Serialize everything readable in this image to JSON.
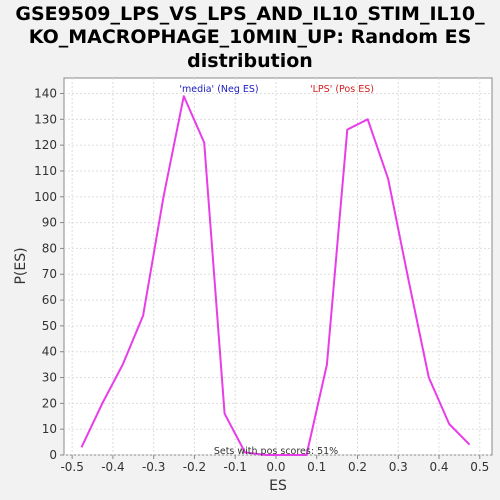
{
  "chart_data": {
    "type": "line",
    "title_lines": [
      "GSE9509_LPS_VS_LPS_AND_IL10_STIM_IL10_",
      "KO_MACROPHAGE_10MIN_UP: Random ES",
      "distribution"
    ],
    "xlabel": "ES",
    "ylabel": "P(ES)",
    "xlim": [
      -0.52,
      0.53
    ],
    "ylim": [
      0,
      146
    ],
    "x_ticks": [
      -0.5,
      -0.4,
      -0.3,
      -0.2,
      -0.1,
      0.0,
      0.1,
      0.2,
      0.3,
      0.4,
      0.5
    ],
    "x_tick_labels": [
      "-0.5",
      "-0.4",
      "-0.3",
      "-0.2",
      "-0.1",
      "0.0",
      "0.1",
      "0.2",
      "0.3",
      "0.4",
      "0.5"
    ],
    "y_ticks": [
      0,
      10,
      20,
      30,
      40,
      50,
      60,
      70,
      80,
      90,
      100,
      110,
      120,
      130,
      140
    ],
    "y_tick_labels": [
      "0",
      "10",
      "20",
      "30",
      "40",
      "50",
      "60",
      "70",
      "80",
      "90",
      "100",
      "110",
      "120",
      "130",
      "140"
    ],
    "grid": true,
    "series": [
      {
        "color": "#e83de8",
        "x": [
          -0.477,
          -0.426,
          -0.376,
          -0.326,
          -0.276,
          -0.226,
          -0.176,
          -0.126,
          -0.076,
          -0.025,
          0.025,
          0.075,
          0.125,
          0.175,
          0.225,
          0.275,
          0.325,
          0.375,
          0.425,
          0.475
        ],
        "y": [
          3,
          20,
          35,
          54,
          100,
          139,
          121,
          16,
          1,
          0,
          0,
          0,
          35,
          126,
          130,
          107,
          68,
          30,
          12,
          4
        ]
      }
    ],
    "annotations": {
      "neg_label": "'media' (Neg ES)",
      "neg_color": "#2020c0",
      "pos_label": "'LPS' (Pos ES)",
      "pos_color": "#d02020",
      "footer": "Sets with pos scores: 51%"
    }
  }
}
